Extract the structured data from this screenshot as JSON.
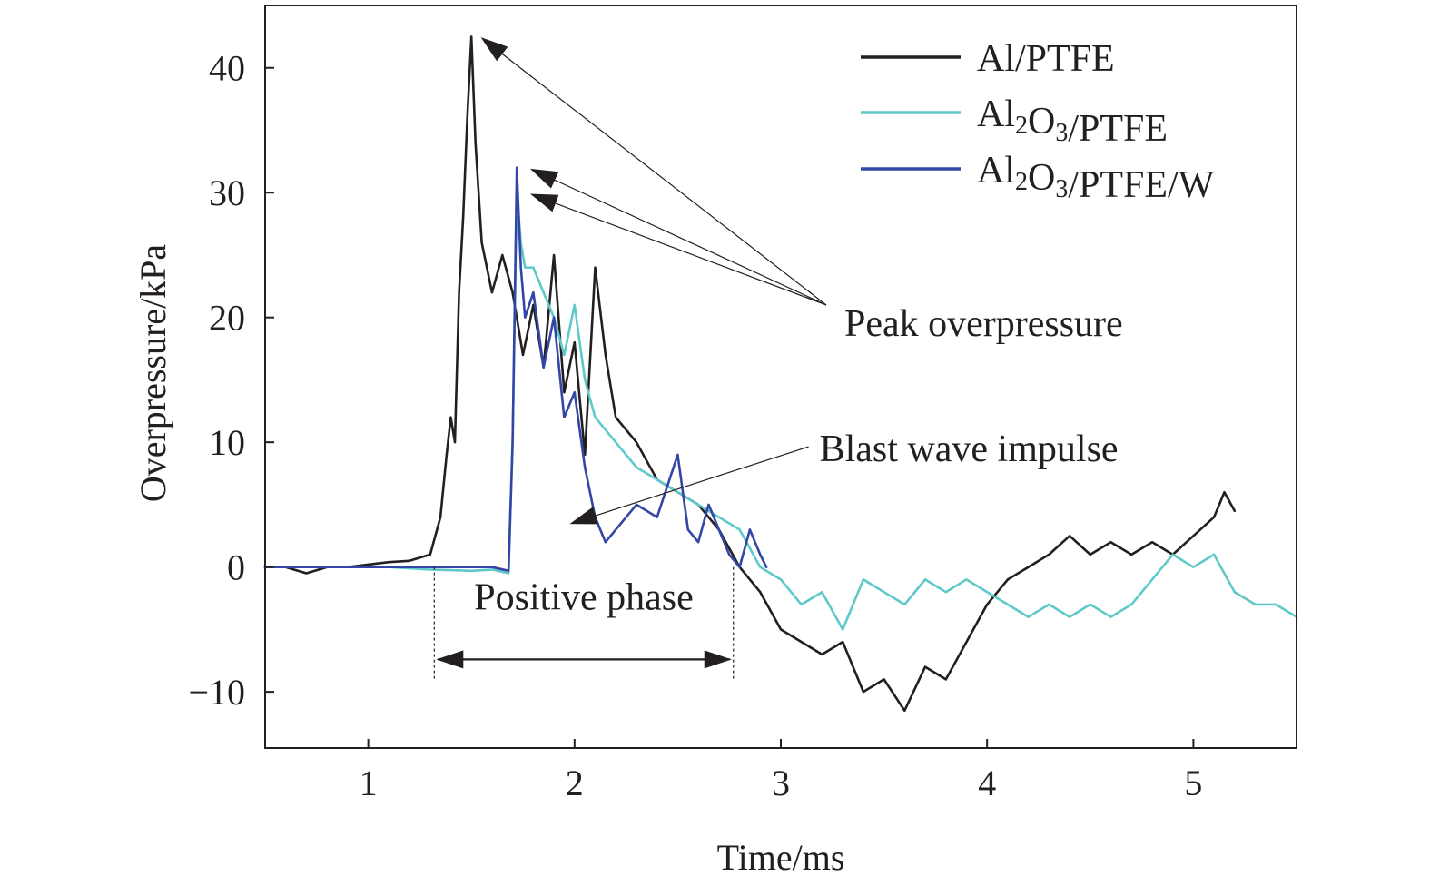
{
  "chart_data": {
    "type": "line",
    "xlabel": "Time/ms",
    "ylabel": "Overpressure/kPa",
    "xlim": [
      0.5,
      5.5
    ],
    "ylim": [
      -14.5,
      45
    ],
    "x_ticks": [
      1,
      2,
      3,
      4,
      5
    ],
    "y_ticks": [
      -10,
      0,
      10,
      20,
      30,
      40
    ],
    "x_tick_labels": [
      "1",
      "2",
      "3",
      "4",
      "5"
    ],
    "y_tick_labels": [
      "−10",
      "0",
      "10",
      "20",
      "30",
      "40"
    ],
    "grid": false,
    "legend_position": "top-right",
    "series": [
      {
        "name": "Al/PTFE",
        "color": "#231f20",
        "x": [
          0.5,
          0.6,
          0.7,
          0.8,
          0.9,
          1.0,
          1.1,
          1.2,
          1.3,
          1.35,
          1.38,
          1.4,
          1.42,
          1.44,
          1.46,
          1.48,
          1.5,
          1.52,
          1.55,
          1.6,
          1.65,
          1.7,
          1.75,
          1.8,
          1.85,
          1.9,
          1.95,
          2.0,
          2.05,
          2.1,
          2.15,
          2.2,
          2.3,
          2.4,
          2.5,
          2.6,
          2.7,
          2.8,
          2.9,
          3.0,
          3.1,
          3.2,
          3.3,
          3.4,
          3.5,
          3.6,
          3.7,
          3.8,
          3.9,
          4.0,
          4.1,
          4.2,
          4.3,
          4.4,
          4.5,
          4.6,
          4.7,
          4.8,
          4.9,
          5.0,
          5.1,
          5.15,
          5.2
        ],
        "y": [
          0,
          0,
          -0.5,
          0,
          0,
          0.2,
          0.4,
          0.5,
          1.0,
          4,
          9,
          12,
          10,
          22,
          28,
          36,
          42.5,
          34,
          26,
          22,
          25,
          22,
          17,
          21,
          16,
          25,
          14,
          18,
          9,
          24,
          17,
          12,
          10,
          7,
          6,
          5,
          3,
          0,
          -2,
          -5,
          -6,
          -7,
          -6,
          -10,
          -9,
          -11.5,
          -8,
          -9,
          -6,
          -3,
          -1,
          0,
          1,
          2.5,
          1,
          2,
          1,
          2,
          1,
          2.5,
          4,
          6,
          4.5
        ]
      },
      {
        "name": "Al2O3/PTFE",
        "color": "#5fc9c9",
        "x": [
          0.5,
          0.7,
          0.9,
          1.1,
          1.3,
          1.5,
          1.6,
          1.68,
          1.7,
          1.72,
          1.74,
          1.76,
          1.8,
          1.85,
          1.9,
          1.95,
          2.0,
          2.05,
          2.1,
          2.2,
          2.3,
          2.4,
          2.5,
          2.6,
          2.7,
          2.8,
          2.9,
          3.0,
          3.1,
          3.2,
          3.3,
          3.4,
          3.5,
          3.6,
          3.7,
          3.8,
          3.9,
          4.0,
          4.1,
          4.2,
          4.3,
          4.4,
          4.5,
          4.6,
          4.7,
          4.8,
          4.9,
          5.0,
          5.1,
          5.2,
          5.3,
          5.4,
          5.5
        ],
        "y": [
          0,
          0,
          0,
          0,
          -0.2,
          -0.3,
          -0.2,
          -0.5,
          10,
          30,
          26,
          24,
          24,
          22,
          20,
          17,
          21,
          15,
          12,
          10,
          8,
          7,
          6,
          5,
          4,
          3,
          0,
          -1,
          -3,
          -2,
          -5,
          -1,
          -2,
          -3,
          -1,
          -2,
          -1,
          -2,
          -3,
          -4,
          -3,
          -4,
          -3,
          -4,
          -3,
          -1,
          1,
          0,
          1,
          -2,
          -3,
          -3,
          -4
        ]
      },
      {
        "name": "Al2O3/PTFE/W",
        "color": "#3346a6",
        "x": [
          0.5,
          0.7,
          0.9,
          1.1,
          1.3,
          1.5,
          1.6,
          1.68,
          1.7,
          1.72,
          1.74,
          1.76,
          1.8,
          1.85,
          1.9,
          1.95,
          2.0,
          2.05,
          2.1,
          2.15,
          2.2,
          2.3,
          2.4,
          2.5,
          2.55,
          2.6,
          2.65,
          2.7,
          2.75,
          2.8,
          2.85,
          2.9,
          2.93
        ],
        "y": [
          0,
          0,
          0,
          0,
          0,
          0,
          0,
          -0.3,
          10,
          32,
          24,
          20,
          22,
          16,
          20,
          12,
          14,
          8,
          4,
          2,
          3,
          5,
          4,
          9,
          3,
          2,
          5,
          3,
          1,
          0,
          3,
          1,
          0
        ]
      }
    ],
    "legend": [
      {
        "series_index": 0,
        "main": "Al/PTFE",
        "sub1": "",
        "mid": "",
        "sub2": "",
        "tail": ""
      },
      {
        "series_index": 1,
        "main": "Al",
        "sub1": "2",
        "mid": "O",
        "sub2": "3",
        "tail": "/PTFE"
      },
      {
        "series_index": 2,
        "main": "Al",
        "sub1": "2",
        "mid": "O",
        "sub2": "3",
        "tail": "/PTFE/W"
      }
    ],
    "annotations": {
      "peak_overpressure": "Peak overpressure",
      "blast_wave_impulse": "Blast wave impulse",
      "positive_phase": "Positive phase",
      "positive_phase_range": [
        1.32,
        2.77
      ],
      "peak_points": [
        {
          "x": 1.5,
          "y": 42.5
        },
        {
          "x": 1.74,
          "y": 32
        },
        {
          "x": 1.74,
          "y": 30
        }
      ],
      "peak_label_anchor": {
        "x": 3.22,
        "y": 21
      },
      "impulse_label_anchor": {
        "x": 3.17,
        "y": 9.5
      },
      "impulse_arrow_tip": {
        "x": 1.95,
        "y": 3.5
      }
    }
  }
}
